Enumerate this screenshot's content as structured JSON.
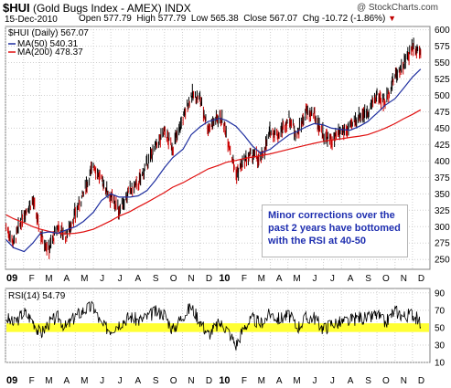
{
  "header": {
    "symbol": "$HUI",
    "title": "(Gold Bugs Index - AMEX) INDX",
    "date": "15-Dec-2010",
    "open_label": "Open",
    "open": "577.79",
    "high_label": "High",
    "high": "577.79",
    "low_label": "Low",
    "low": "565.38",
    "close_label": "Close",
    "close": "567.07",
    "chg_label": "Chg",
    "chg": "-10.72 (-1.86%)",
    "chg_arrow": "▼",
    "watermark": "@ StockCharts.com"
  },
  "legend": {
    "price": "$HUI (Daily) 567.07",
    "ma50": "MA(50) 540.31",
    "ma200": "MA(200) 478.37",
    "rsi": "RSI(14) 54.79"
  },
  "annotation": "Minor corrections over the past 2 years have bottomed with the RSI at 40-50",
  "colors": {
    "price_bar": "#000000",
    "price_bar_down": "#cc0000",
    "ma50": "#1f2fa0",
    "ma200": "#e01010",
    "rsi_line": "#000000",
    "rsi_band": "#ffff33",
    "grid": "#d0d0d0",
    "axis_text": "#000000",
    "annotation_text": "#1f2fb0"
  },
  "chart_data": [
    {
      "type": "line",
      "name": "price",
      "xlabel": "",
      "ylabel": "",
      "ylim": [
        235,
        605
      ],
      "yticks": [
        250,
        275,
        300,
        325,
        350,
        375,
        400,
        425,
        450,
        475,
        500,
        525,
        550,
        575,
        600
      ],
      "x_ticks": [
        "09",
        "F",
        "M",
        "A",
        "M",
        "J",
        "J",
        "A",
        "S",
        "O",
        "N",
        "D",
        "10",
        "F",
        "M",
        "A",
        "M",
        "J",
        "J",
        "A",
        "S",
        "O",
        "N",
        "D"
      ],
      "x_tick_bold": [
        "09",
        "10"
      ],
      "grid": true,
      "legend_position": "top-left",
      "x": [
        "2009-01-02",
        "2009-01-15",
        "2009-02-02",
        "2009-02-17",
        "2009-03-02",
        "2009-03-16",
        "2009-04-01",
        "2009-04-15",
        "2009-05-01",
        "2009-05-15",
        "2009-06-01",
        "2009-06-15",
        "2009-07-01",
        "2009-07-15",
        "2009-08-03",
        "2009-08-17",
        "2009-09-01",
        "2009-09-15",
        "2009-10-01",
        "2009-10-15",
        "2009-11-02",
        "2009-11-16",
        "2009-12-01",
        "2009-12-15",
        "2010-01-04",
        "2010-01-15",
        "2010-02-01",
        "2010-02-16",
        "2010-03-01",
        "2010-03-15",
        "2010-04-01",
        "2010-04-15",
        "2010-05-03",
        "2010-05-17",
        "2010-06-01",
        "2010-06-15",
        "2010-07-01",
        "2010-07-15",
        "2010-08-02",
        "2010-08-16",
        "2010-09-01",
        "2010-09-15",
        "2010-10-01",
        "2010-10-15",
        "2010-11-01",
        "2010-11-15",
        "2010-12-01",
        "2010-12-15"
      ],
      "series": [
        {
          "name": "$HUI (Daily)",
          "values": [
            300,
            275,
            320,
            340,
            290,
            265,
            300,
            285,
            320,
            350,
            395,
            370,
            345,
            325,
            355,
            365,
            395,
            420,
            445,
            420,
            465,
            500,
            495,
            450,
            470,
            445,
            380,
            400,
            410,
            400,
            445,
            440,
            465,
            440,
            475,
            470,
            440,
            430,
            445,
            450,
            470,
            475,
            500,
            490,
            530,
            545,
            575,
            567
          ]
        },
        {
          "name": "MA(50)",
          "values": [
            280,
            268,
            262,
            275,
            290,
            292,
            290,
            295,
            300,
            308,
            322,
            340,
            350,
            345,
            345,
            347,
            355,
            370,
            390,
            405,
            418,
            440,
            452,
            460,
            465,
            462,
            453,
            438,
            423,
            412,
            418,
            428,
            440,
            445,
            452,
            457,
            455,
            450,
            448,
            447,
            453,
            460,
            473,
            485,
            495,
            510,
            528,
            540
          ]
        },
        {
          "name": "MA(200)",
          "values": [
            318,
            312,
            306,
            300,
            296,
            293,
            290,
            289,
            290,
            292,
            296,
            302,
            309,
            316,
            323,
            330,
            337,
            344,
            352,
            360,
            367,
            374,
            381,
            388,
            394,
            398,
            401,
            404,
            406,
            408,
            411,
            414,
            418,
            421,
            424,
            427,
            430,
            432,
            434,
            436,
            438,
            440,
            445,
            450,
            457,
            464,
            471,
            478
          ]
        }
      ]
    },
    {
      "type": "line",
      "name": "rsi",
      "ylim": [
        10,
        95
      ],
      "yticks": [
        10,
        30,
        50,
        70,
        90
      ],
      "band": [
        45,
        55
      ],
      "x_ticks": [
        "09",
        "F",
        "M",
        "A",
        "M",
        "J",
        "J",
        "A",
        "S",
        "O",
        "N",
        "D",
        "10",
        "F",
        "M",
        "A",
        "M",
        "J",
        "J",
        "A",
        "S",
        "O",
        "N",
        "D"
      ],
      "grid": true,
      "series": [
        {
          "name": "RSI(14)",
          "values": [
            62,
            54,
            68,
            58,
            42,
            55,
            62,
            50,
            63,
            70,
            74,
            52,
            48,
            55,
            63,
            58,
            62,
            68,
            66,
            47,
            64,
            74,
            58,
            42,
            55,
            50,
            30,
            52,
            60,
            55,
            66,
            60,
            64,
            50,
            61,
            62,
            48,
            55,
            56,
            58,
            62,
            60,
            65,
            55,
            70,
            63,
            66,
            55
          ]
        }
      ]
    }
  ]
}
